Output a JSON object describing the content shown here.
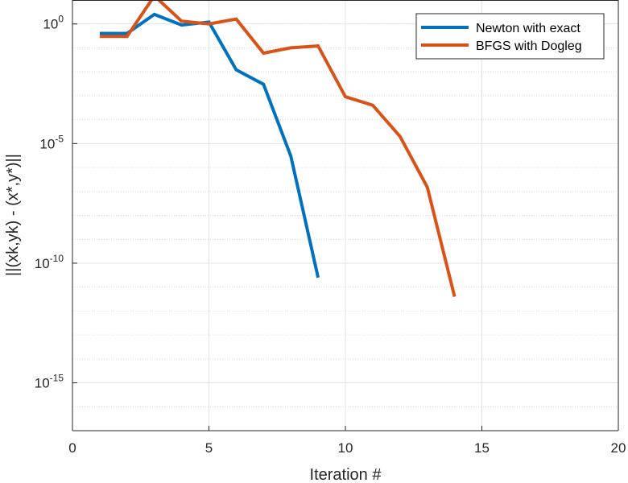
{
  "chart_data": {
    "type": "line",
    "title": "",
    "xlabel": "Iteration #",
    "ylabel": "||(xk,yk) - (x*,y*)||",
    "xlim": [
      0,
      20
    ],
    "ylim": [
      1e-17,
      10.0
    ],
    "yscale": "log",
    "grid": true,
    "minor_grid_y": true,
    "legend_position": "top-right",
    "x_ticks": [
      {
        "value": 0,
        "label": "0"
      },
      {
        "value": 5,
        "label": "5"
      },
      {
        "value": 10,
        "label": "10"
      },
      {
        "value": 15,
        "label": "15"
      },
      {
        "value": 20,
        "label": "20"
      }
    ],
    "y_ticks": [
      {
        "exp": 0,
        "base": "10",
        "sup": "0"
      },
      {
        "exp": -5,
        "base": "10",
        "sup": "-5"
      },
      {
        "exp": -10,
        "base": "10",
        "sup": "-10"
      },
      {
        "exp": -15,
        "base": "10",
        "sup": "-15"
      }
    ],
    "series": [
      {
        "name": "Newton with exact",
        "color": "#0072BD",
        "x": [
          1,
          2,
          3,
          4,
          5,
          6,
          7,
          8,
          9
        ],
        "y": [
          0.4,
          0.4,
          2.5,
          0.9,
          1.2,
          0.012,
          0.003,
          3e-06,
          2.5e-11
        ]
      },
      {
        "name": "BFGS with Dogleg",
        "color": "#D95319",
        "x": [
          1,
          2,
          3,
          4,
          5,
          6,
          7,
          8,
          9,
          10,
          11,
          12,
          13,
          14
        ],
        "y": [
          0.3,
          0.3,
          15,
          1.3,
          1.0,
          1.6,
          0.06,
          0.1,
          0.12,
          0.0009,
          0.0004,
          2e-05,
          1.5e-07,
          4e-12
        ]
      }
    ]
  }
}
